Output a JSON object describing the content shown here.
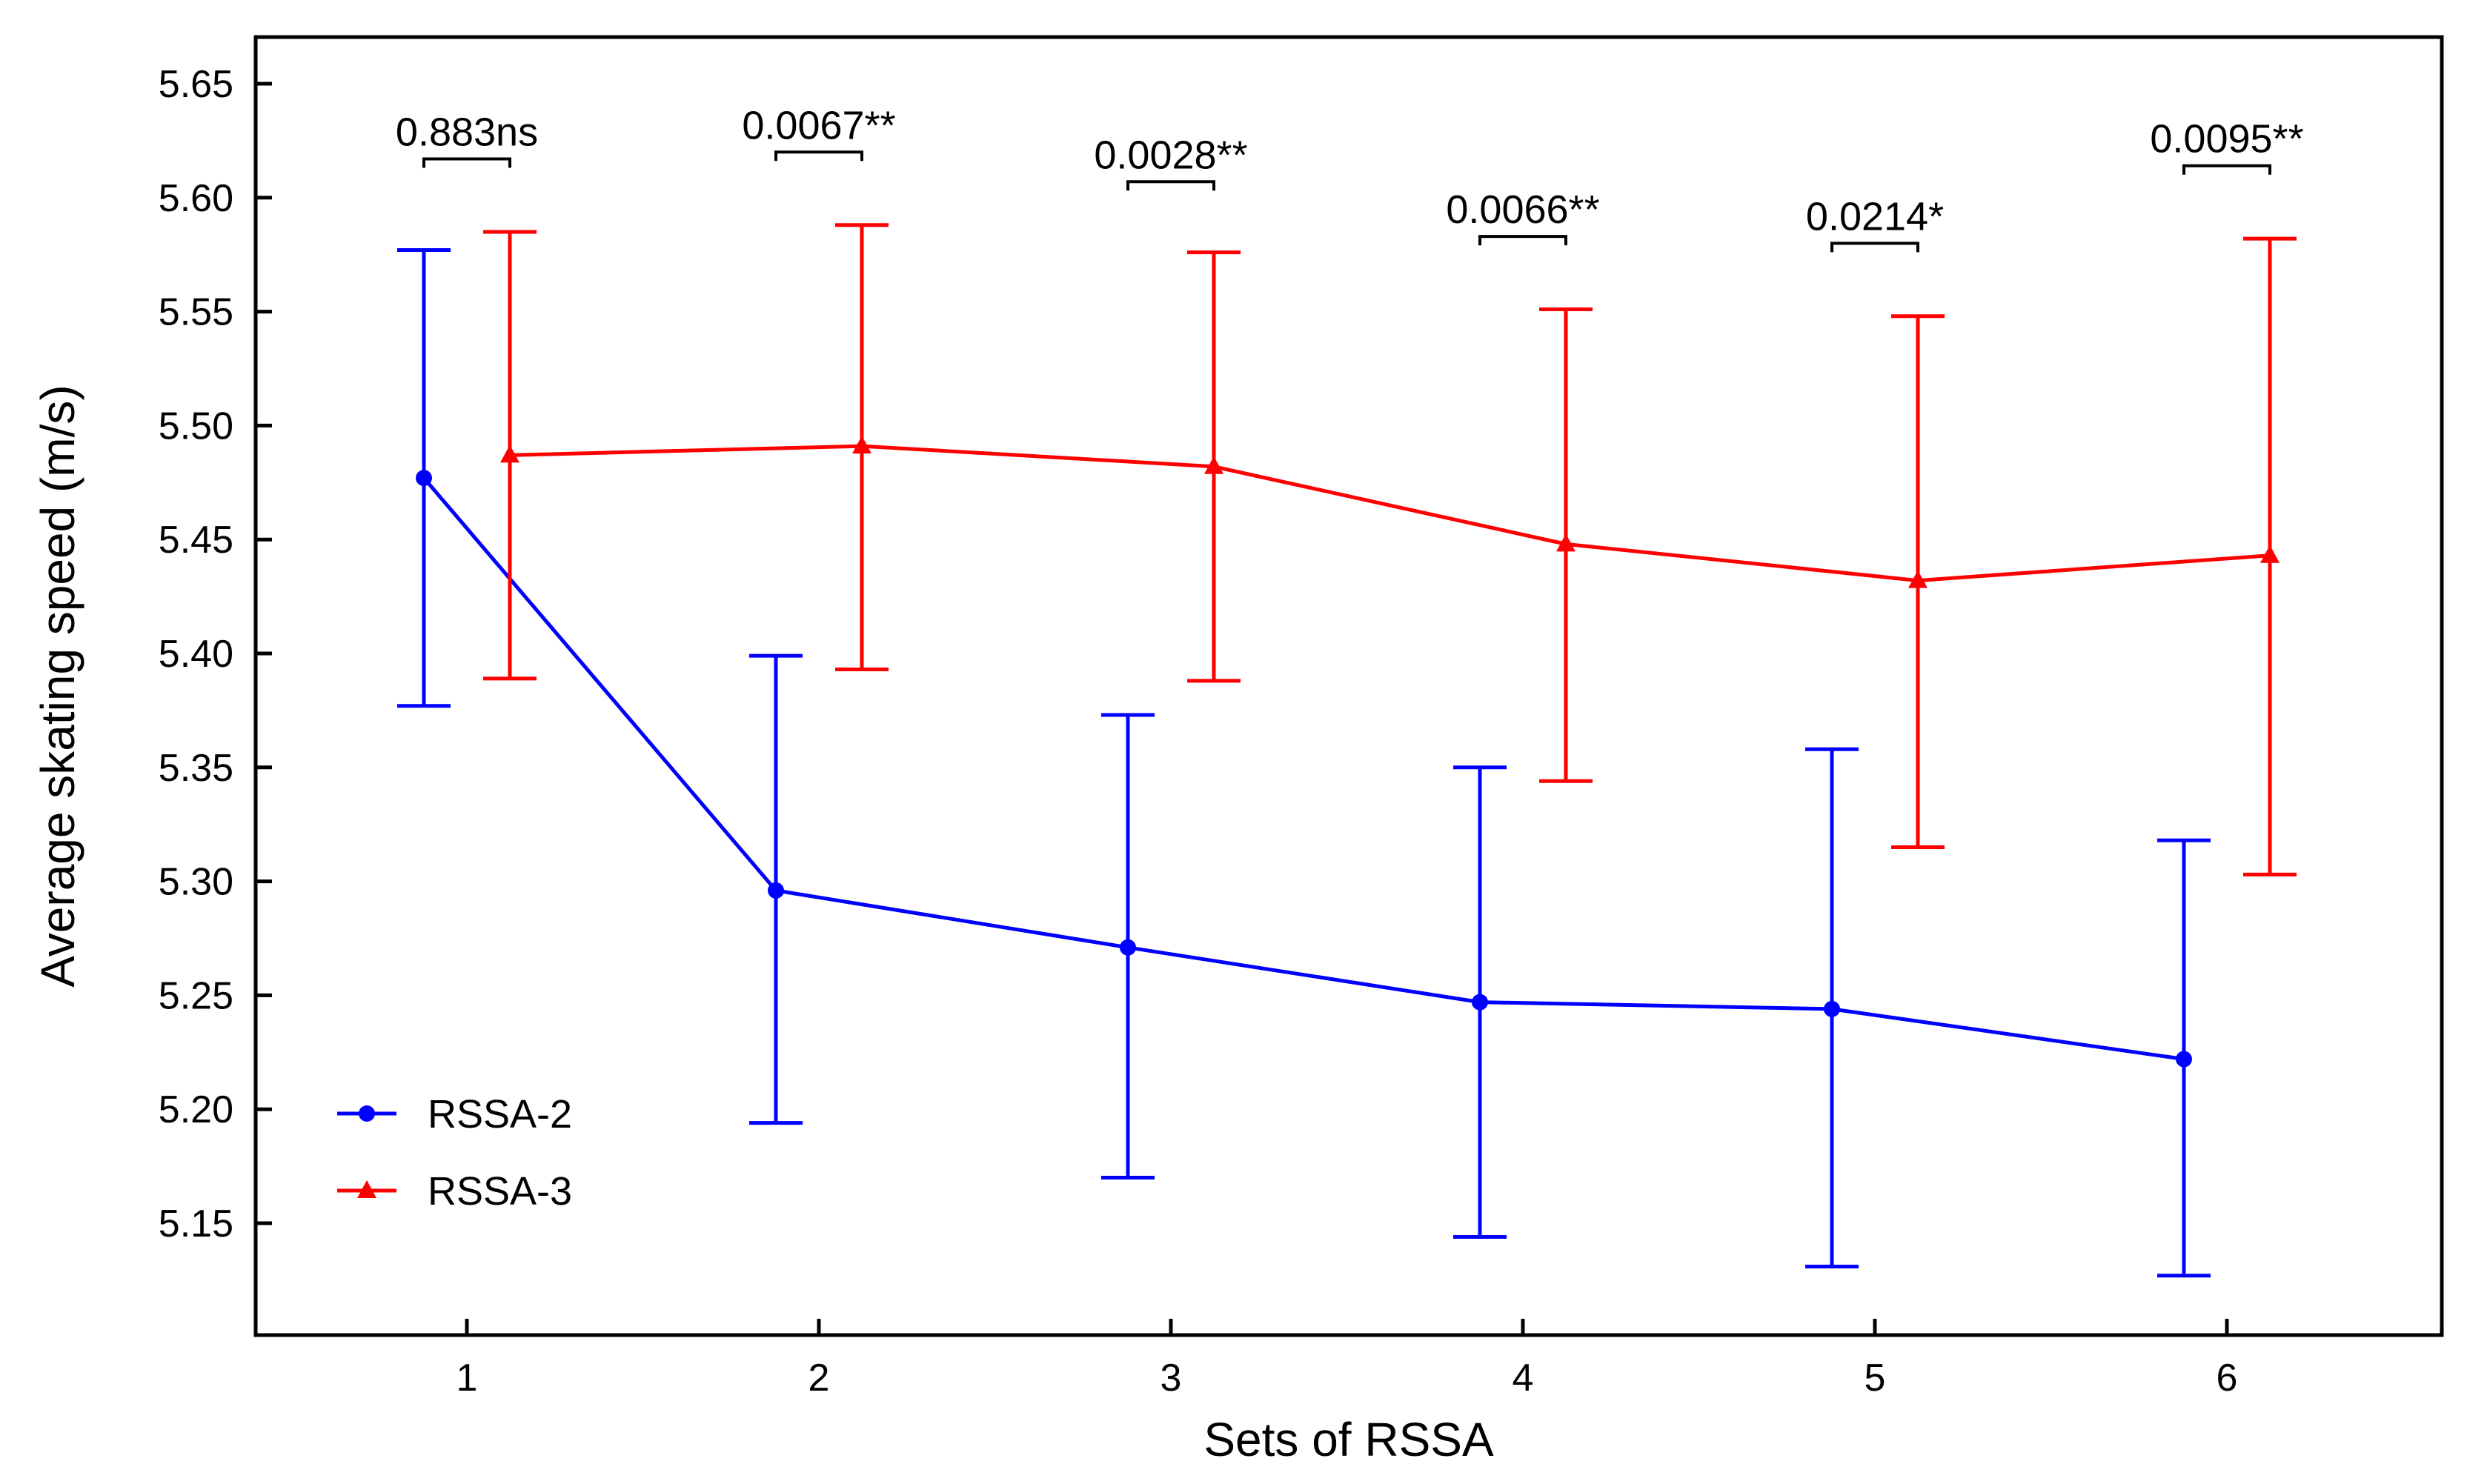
{
  "chart_data": {
    "type": "line",
    "title": "",
    "xlabel": "Sets of RSSA",
    "ylabel": "Average skating speed (m/s)",
    "categories": [
      "1",
      "2",
      "3",
      "4",
      "5",
      "6"
    ],
    "ylim": [
      5.1,
      5.665
    ],
    "yticks": [
      "5.15",
      "5.20",
      "5.25",
      "5.30",
      "5.35",
      "5.40",
      "5.45",
      "5.50",
      "5.55",
      "5.60",
      "5.65"
    ],
    "grid": false,
    "legend_position": "bottom-left",
    "series": [
      {
        "name": "RSSA-2",
        "color": "#0000ff",
        "marker": "circle",
        "values": [
          5.477,
          5.296,
          5.271,
          5.247,
          5.244,
          5.222
        ],
        "error_lower": [
          5.377,
          5.194,
          5.17,
          5.144,
          5.131,
          5.127
        ],
        "error_upper": [
          5.577,
          5.399,
          5.373,
          5.35,
          5.358,
          5.318
        ]
      },
      {
        "name": "RSSA-3",
        "color": "#ff0000",
        "marker": "triangle",
        "values": [
          5.487,
          5.491,
          5.482,
          5.448,
          5.432,
          5.443
        ],
        "error_lower": [
          5.389,
          5.393,
          5.388,
          5.344,
          5.315,
          5.303
        ],
        "error_upper": [
          5.585,
          5.588,
          5.576,
          5.551,
          5.548,
          5.582
        ]
      }
    ],
    "significance": [
      {
        "label": "0.883ns",
        "level": 5.617
      },
      {
        "label": "0.0067**",
        "level": 5.62
      },
      {
        "label": "0.0028**",
        "level": 5.607
      },
      {
        "label": "0.0066**",
        "level": 5.583
      },
      {
        "label": "0.0214*",
        "level": 5.58
      },
      {
        "label": "0.0095**",
        "level": 5.614
      }
    ]
  }
}
